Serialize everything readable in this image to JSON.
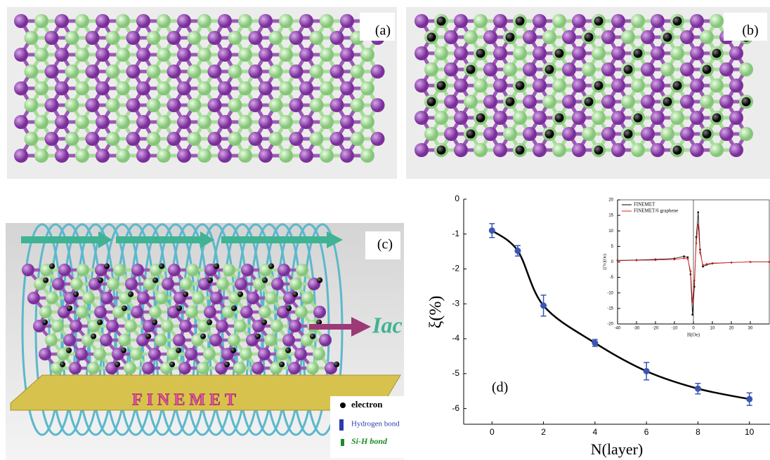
{
  "panels": {
    "a": {
      "label": "(a)"
    },
    "b": {
      "label": "(b)"
    },
    "c": {
      "label": "(c)",
      "current": "Iac",
      "plate": "FINEMET",
      "legend": [
        "electron",
        "Hydrogen bond",
        "Si-H bond"
      ]
    }
  },
  "chart_data": [
    {
      "type": "line",
      "label": "(d)",
      "xlabel": "N(layer)",
      "ylabel": "ξ(%)",
      "x": [
        0,
        1,
        2,
        4,
        6,
        8,
        10
      ],
      "series": [
        {
          "color": "#000000",
          "marker_color": "#3a55b4",
          "values": [
            -0.9,
            -1.48,
            -3.05,
            -4.12,
            -4.93,
            -5.43,
            -5.73
          ],
          "errors": [
            0.2,
            0.15,
            0.3,
            0.1,
            0.25,
            0.15,
            0.18
          ]
        }
      ],
      "xlim": [
        -1.1,
        10.8
      ],
      "ylim": [
        -6.45,
        0
      ],
      "xticks": [
        0,
        2,
        4,
        6,
        8,
        10
      ],
      "yticks": [
        0,
        -1,
        -2,
        -3,
        -4,
        -5,
        -6
      ]
    },
    {
      "type": "line",
      "xlabel": "H(Oe)",
      "ylabel": "ξ[%](Oe)",
      "x": [
        -40,
        -30,
        -20,
        -10,
        -5,
        -3,
        -1.5,
        -0.5,
        0.5,
        1.5,
        2.5,
        3.5,
        5,
        7,
        10,
        20,
        30,
        40
      ],
      "series": [
        {
          "name": "FINEMET",
          "color": "#000000",
          "values": [
            0.5,
            0.6,
            0.8,
            1.1,
            1.8,
            1.5,
            -4,
            -17,
            -8,
            8,
            16,
            4,
            -1.5,
            -0.9,
            -0.5,
            -0.2,
            0,
            0
          ]
        },
        {
          "name": "FINEMET/6 graphene",
          "color": "#e0201b",
          "values": [
            0.4,
            0.5,
            0.6,
            0.8,
            1.2,
            1.0,
            -3,
            -13,
            -6,
            6,
            12,
            3,
            -1.0,
            -0.7,
            -0.4,
            -0.2,
            0,
            0
          ]
        }
      ],
      "xlim": [
        -40,
        40
      ],
      "ylim": [
        -20,
        20
      ],
      "xticks": [
        -40,
        -30,
        -20,
        -10,
        0,
        10,
        20,
        30
      ],
      "yticks": [
        -20,
        -15,
        -10,
        -5,
        0,
        5,
        10,
        15,
        20
      ]
    }
  ]
}
